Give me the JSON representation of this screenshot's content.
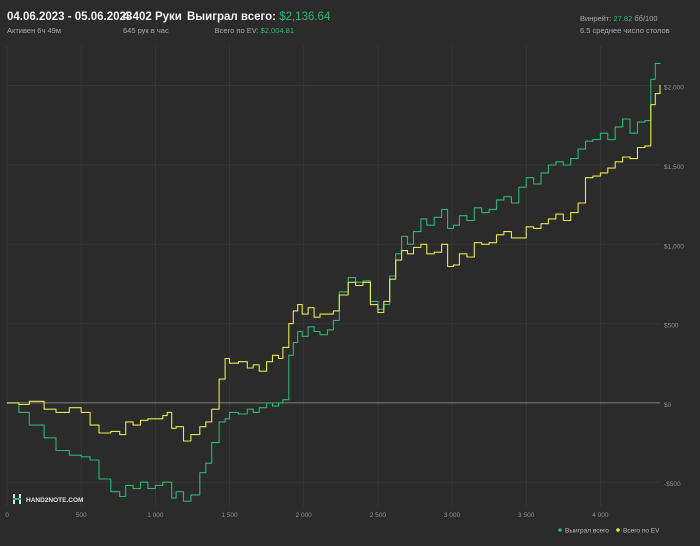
{
  "header": {
    "date_range": "04.06.2023 - 05.06.2023",
    "active": "Активен 6ч 49м",
    "hands": "4 402 Руки",
    "hands_per_hour": "645 рук в час",
    "won_label": "Выиграл всего:",
    "won_value": "$2,136.64",
    "ev_label": "Всего по EV:",
    "ev_value": "$2,004.81",
    "winrate_label": "Винрейт:",
    "winrate_value": "27.82",
    "winrate_suffix": "бб/100",
    "tables": "6.5 среднее число столов"
  },
  "logo": "HAND2NOTE.COM",
  "colors": {
    "won": "#2bb673",
    "ev": "#e8e84a",
    "background": "#2b2b2b",
    "grid": "#3a3a3a",
    "zero_line": "#9a9a9a"
  },
  "chart_data": {
    "type": "line",
    "x_ticks": [
      0,
      500,
      1000,
      1500,
      2000,
      2500,
      3000,
      3500,
      4000
    ],
    "x_tick_labels": [
      "0",
      "500",
      "1 000",
      "1 500",
      "2 000",
      "2 500",
      "3 000",
      "3 500",
      "4 000"
    ],
    "y_ticks": [
      -500,
      0,
      500,
      1000,
      1500,
      2000
    ],
    "y_tick_labels": [
      "-$500",
      "$0",
      "$500",
      "$1,000",
      "$1,500",
      "$2,000"
    ],
    "xlim": [
      0,
      4402
    ],
    "ylim": [
      -650,
      2250
    ],
    "grid": true,
    "legend_position": "bottom-right",
    "series": [
      {
        "name": "Выиграл всего",
        "x": [
          0,
          80,
          150,
          250,
          330,
          420,
          500,
          560,
          620,
          700,
          760,
          800,
          850,
          900,
          950,
          1000,
          1050,
          1080,
          1110,
          1140,
          1190,
          1240,
          1300,
          1340,
          1380,
          1430,
          1470,
          1500,
          1560,
          1620,
          1660,
          1700,
          1750,
          1790,
          1830,
          1860,
          1900,
          1930,
          1960,
          1990,
          2030,
          2070,
          2110,
          2160,
          2200,
          2240,
          2300,
          2350,
          2400,
          2450,
          2500,
          2540,
          2580,
          2620,
          2660,
          2700,
          2740,
          2790,
          2830,
          2880,
          2930,
          2970,
          3010,
          3050,
          3100,
          3150,
          3200,
          3250,
          3300,
          3350,
          3400,
          3450,
          3500,
          3550,
          3600,
          3650,
          3700,
          3750,
          3800,
          3850,
          3900,
          3950,
          4000,
          4050,
          4100,
          4150,
          4200,
          4250,
          4300,
          4340,
          4370,
          4402
        ],
        "values": [
          0,
          -60,
          -140,
          -220,
          -300,
          -330,
          -340,
          -360,
          -480,
          -560,
          -590,
          -520,
          -540,
          -500,
          -540,
          -520,
          -500,
          -500,
          -600,
          -560,
          -620,
          -580,
          -440,
          -380,
          -250,
          -120,
          -100,
          -60,
          -70,
          -40,
          -60,
          -30,
          0,
          -20,
          0,
          20,
          300,
          380,
          450,
          420,
          480,
          450,
          430,
          460,
          520,
          700,
          790,
          760,
          770,
          640,
          590,
          620,
          800,
          940,
          1050,
          1000,
          1080,
          1160,
          1120,
          1170,
          1220,
          1100,
          1120,
          1180,
          1150,
          1230,
          1200,
          1220,
          1280,
          1300,
          1260,
          1360,
          1420,
          1380,
          1450,
          1500,
          1520,
          1500,
          1540,
          1600,
          1650,
          1660,
          1700,
          1660,
          1740,
          1790,
          1700,
          1770,
          1780,
          2040,
          2140,
          2137
        ]
      },
      {
        "name": "Всего по EV",
        "x": [
          0,
          80,
          150,
          250,
          330,
          420,
          500,
          560,
          620,
          700,
          760,
          800,
          850,
          900,
          950,
          1000,
          1050,
          1080,
          1110,
          1140,
          1190,
          1240,
          1300,
          1340,
          1380,
          1430,
          1470,
          1500,
          1560,
          1620,
          1660,
          1700,
          1750,
          1790,
          1830,
          1860,
          1900,
          1930,
          1960,
          1990,
          2030,
          2070,
          2110,
          2160,
          2200,
          2240,
          2300,
          2350,
          2400,
          2450,
          2500,
          2540,
          2580,
          2620,
          2660,
          2700,
          2740,
          2790,
          2830,
          2880,
          2930,
          2970,
          3010,
          3050,
          3100,
          3150,
          3200,
          3250,
          3300,
          3350,
          3400,
          3450,
          3500,
          3550,
          3600,
          3650,
          3700,
          3750,
          3800,
          3850,
          3900,
          3950,
          4000,
          4050,
          4100,
          4150,
          4200,
          4250,
          4300,
          4340,
          4370,
          4402
        ],
        "values": [
          0,
          -10,
          10,
          -40,
          -60,
          -30,
          -60,
          -140,
          -190,
          -180,
          -200,
          -120,
          -140,
          -110,
          -100,
          -100,
          -80,
          -60,
          -160,
          -150,
          -240,
          -200,
          -150,
          -120,
          -40,
          150,
          280,
          250,
          260,
          220,
          240,
          200,
          260,
          300,
          280,
          350,
          500,
          580,
          620,
          560,
          600,
          540,
          560,
          560,
          580,
          680,
          760,
          740,
          760,
          620,
          570,
          640,
          780,
          900,
          960,
          940,
          980,
          1000,
          940,
          950,
          1000,
          860,
          870,
          940,
          920,
          1010,
          1000,
          1010,
          1060,
          1080,
          1040,
          1040,
          1110,
          1100,
          1130,
          1160,
          1190,
          1150,
          1200,
          1260,
          1420,
          1430,
          1450,
          1480,
          1520,
          1550,
          1540,
          1610,
          1620,
          1880,
          1950,
          2005
        ]
      }
    ]
  }
}
